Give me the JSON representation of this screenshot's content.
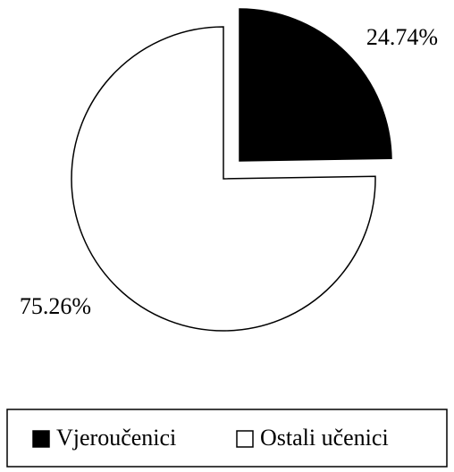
{
  "chart_data": {
    "type": "pie",
    "categories": [
      "Vjeroučenici",
      "Ostali učenici"
    ],
    "values": [
      24.74,
      75.26
    ],
    "value_labels": [
      "24.74%",
      "75.26%"
    ],
    "colors": [
      "#000000",
      "#ffffff"
    ]
  }
}
